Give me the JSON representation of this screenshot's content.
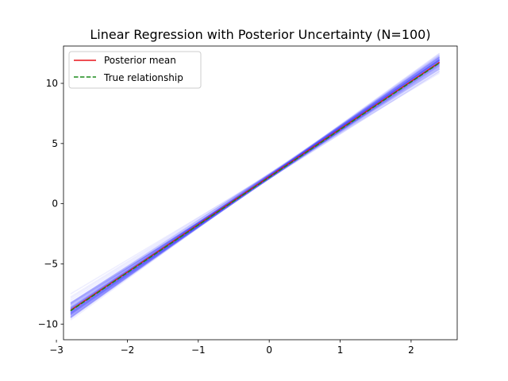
{
  "chart_data": {
    "type": "line",
    "title": "Linear Regression with Posterior Uncertainty (N=100)",
    "xlabel": "",
    "ylabel": "",
    "xlim": [
      -2.9,
      2.65
    ],
    "ylim": [
      -11.3,
      13.1
    ],
    "xticks": [
      -3,
      -2,
      -1,
      0,
      1,
      2
    ],
    "yticks": [
      -10,
      -5,
      0,
      5,
      10
    ],
    "x_range": [
      -2.8,
      2.4
    ],
    "grid": false,
    "legend_position": "top-left",
    "series": [
      {
        "name": "Posterior mean",
        "style": "solid",
        "color": "#e8141c",
        "x": [
          -2.8,
          2.4
        ],
        "y": [
          -8.85,
          11.75
        ]
      },
      {
        "name": "True relationship",
        "style": "dashed",
        "color": "#1a8a1a",
        "x": [
          -2.8,
          2.4
        ],
        "y": [
          -8.9,
          11.7
        ]
      }
    ],
    "posterior_samples": {
      "count": 100,
      "color": "#3f3fff",
      "description": "Lines drawn from posterior; intercept and slope vary around the mean",
      "intercept_mean": 2.25,
      "intercept_sd": 0.1,
      "slope_mean": 3.96,
      "slope_sd": 0.12
    }
  }
}
